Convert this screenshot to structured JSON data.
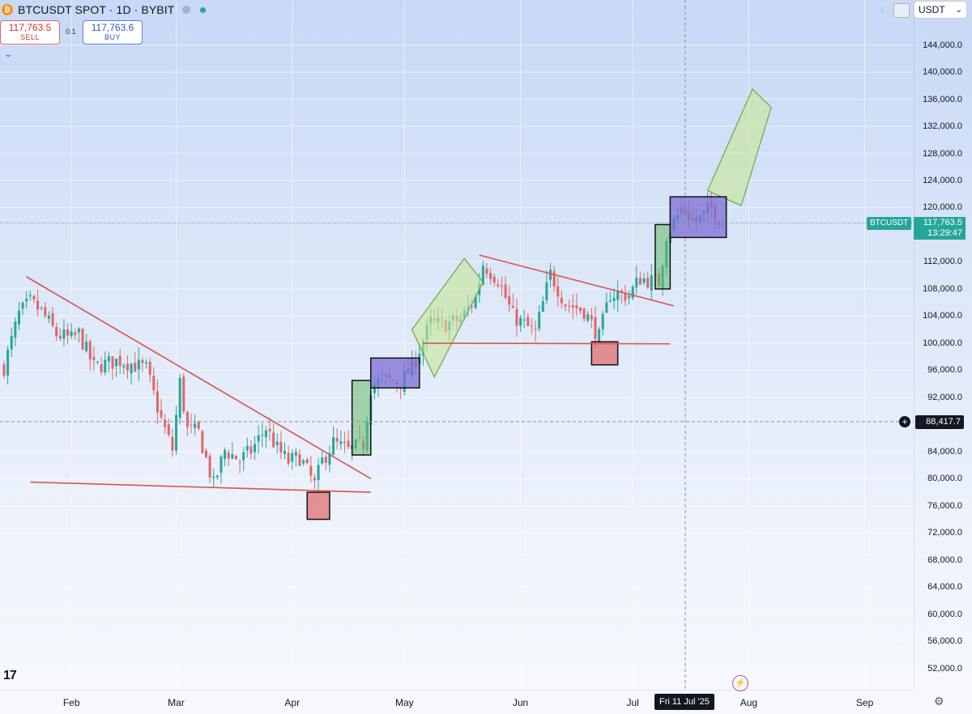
{
  "header": {
    "title": "BTCUSDT SPOT · 1D · BYBIT",
    "logo_icon": "bitcoin-icon",
    "sell_price": "117,763.5",
    "sell_label": "SELL",
    "buy_price": "117,763.6",
    "buy_label": "BUY",
    "spread": "0.1"
  },
  "toolbar": {
    "currency": "USDT"
  },
  "price_scale": {
    "labels": [
      "144,000.0",
      "140,000.0",
      "136,000.0",
      "132,000.0",
      "128,000.0",
      "124,000.0",
      "120,000.0",
      "112,000.0",
      "108,000.0",
      "104,000.0",
      "100,000.0",
      "96,000.0",
      "92,000.0",
      "84,000.0",
      "80,000.0",
      "76,000.0",
      "72,000.0",
      "68,000.0",
      "64,000.0",
      "60,000.0",
      "56,000.0",
      "52,000.0"
    ],
    "current_symbol": "BTCUSDT",
    "current_price": "117,763.5",
    "countdown": "13:29:47",
    "crosshair_price": "88,417.7"
  },
  "time_scale": {
    "labels": [
      "Feb",
      "Mar",
      "Apr",
      "May",
      "Jun",
      "Jul",
      "Aug",
      "Sep"
    ],
    "crosshair_date": "Fri 11 Jul '25"
  },
  "colors": {
    "up": "#26a69a",
    "down": "#e06666",
    "line": "#d9534f",
    "accent": "#2962ff"
  },
  "chart_data": {
    "type": "candlestick",
    "symbol": "BTCUSDT",
    "timeframe": "1D",
    "x_range": [
      "2025-01-14",
      "2025-09-10"
    ],
    "ylim": [
      50000,
      146000
    ],
    "y_scale": "linear",
    "grid": true,
    "closes": [
      {
        "date": "2025-01-14",
        "close": 96500
      },
      {
        "date": "2025-01-18",
        "close": 104300
      },
      {
        "date": "2025-01-21",
        "close": 106000
      },
      {
        "date": "2025-01-24",
        "close": 104700
      },
      {
        "date": "2025-01-28",
        "close": 101300
      },
      {
        "date": "2025-02-01",
        "close": 100600
      },
      {
        "date": "2025-02-03",
        "close": 101400
      },
      {
        "date": "2025-02-07",
        "close": 96500
      },
      {
        "date": "2025-02-14",
        "close": 97500
      },
      {
        "date": "2025-02-21",
        "close": 96200
      },
      {
        "date": "2025-02-25",
        "close": 88700
      },
      {
        "date": "2025-02-28",
        "close": 84300
      },
      {
        "date": "2025-03-02",
        "close": 94200
      },
      {
        "date": "2025-03-04",
        "close": 87200
      },
      {
        "date": "2025-03-07",
        "close": 86800
      },
      {
        "date": "2025-03-11",
        "close": 79000
      },
      {
        "date": "2025-03-14",
        "close": 84200
      },
      {
        "date": "2025-03-18",
        "close": 82700
      },
      {
        "date": "2025-03-21",
        "close": 84100
      },
      {
        "date": "2025-03-25",
        "close": 87500
      },
      {
        "date": "2025-03-28",
        "close": 84400
      },
      {
        "date": "2025-03-31",
        "close": 82500
      },
      {
        "date": "2025-04-03",
        "close": 83200
      },
      {
        "date": "2025-04-07",
        "close": 79100
      },
      {
        "date": "2025-04-09",
        "close": 82600
      },
      {
        "date": "2025-04-12",
        "close": 85300
      },
      {
        "date": "2025-04-16",
        "close": 84100
      },
      {
        "date": "2025-04-20",
        "close": 85100
      },
      {
        "date": "2025-04-22",
        "close": 93500
      },
      {
        "date": "2025-04-25",
        "close": 94700
      },
      {
        "date": "2025-04-30",
        "close": 94200
      },
      {
        "date": "2025-05-03",
        "close": 96500
      },
      {
        "date": "2025-05-08",
        "close": 103000
      },
      {
        "date": "2025-05-12",
        "close": 102800
      },
      {
        "date": "2025-05-16",
        "close": 103500
      },
      {
        "date": "2025-05-20",
        "close": 106800
      },
      {
        "date": "2025-05-22",
        "close": 111700
      },
      {
        "date": "2025-05-26",
        "close": 109400
      },
      {
        "date": "2025-05-30",
        "close": 104000
      },
      {
        "date": "2025-06-05",
        "close": 101500
      },
      {
        "date": "2025-06-09",
        "close": 110200
      },
      {
        "date": "2025-06-13",
        "close": 105900
      },
      {
        "date": "2025-06-18",
        "close": 104800
      },
      {
        "date": "2025-06-22",
        "close": 100900
      },
      {
        "date": "2025-06-25",
        "close": 107300
      },
      {
        "date": "2025-06-30",
        "close": 107100
      },
      {
        "date": "2025-07-03",
        "close": 109600
      },
      {
        "date": "2025-07-08",
        "close": 108900
      },
      {
        "date": "2025-07-10",
        "close": 116000
      },
      {
        "date": "2025-07-14",
        "close": 119800
      },
      {
        "date": "2025-07-18",
        "close": 117900
      },
      {
        "date": "2025-07-22",
        "close": 119900
      },
      {
        "date": "2025-07-25",
        "close": 117800
      }
    ],
    "annotations": {
      "trendlines": [
        {
          "from": {
            "date": "2025-01-20",
            "price": 109800
          },
          "to": {
            "date": "2025-04-22",
            "price": 80000
          }
        },
        {
          "from": {
            "date": "2025-01-21",
            "price": 79500
          },
          "to": {
            "date": "2025-04-22",
            "price": 78000
          }
        },
        {
          "from": {
            "date": "2025-05-06",
            "price": 100000
          },
          "to": {
            "date": "2025-07-11",
            "price": 99900
          }
        },
        {
          "from": {
            "date": "2025-05-21",
            "price": 113000
          },
          "to": {
            "date": "2025-07-12",
            "price": 105500
          }
        }
      ],
      "boxes": [
        {
          "kind": "red",
          "from": {
            "date": "2025-04-05",
            "price": 78000
          },
          "to": {
            "date": "2025-04-11",
            "price": 74000
          }
        },
        {
          "kind": "green",
          "from": {
            "date": "2025-04-17",
            "price": 94500
          },
          "to": {
            "date": "2025-04-22",
            "price": 83500
          }
        },
        {
          "kind": "blue",
          "from": {
            "date": "2025-04-22",
            "price": 97800
          },
          "to": {
            "date": "2025-05-05",
            "price": 93400
          }
        },
        {
          "kind": "red",
          "from": {
            "date": "2025-06-20",
            "price": 100200
          },
          "to": {
            "date": "2025-06-27",
            "price": 96800
          }
        },
        {
          "kind": "green",
          "from": {
            "date": "2025-07-07",
            "price": 117500
          },
          "to": {
            "date": "2025-07-11",
            "price": 108000
          }
        },
        {
          "kind": "blue",
          "from": {
            "date": "2025-07-11",
            "price": 121600
          },
          "to": {
            "date": "2025-07-26",
            "price": 115600
          }
        }
      ],
      "projections": [
        [
          {
            "date": "2025-05-03",
            "price": 102000
          },
          {
            "date": "2025-05-17",
            "price": 112500
          },
          {
            "date": "2025-05-22",
            "price": 109000
          },
          {
            "date": "2025-05-09",
            "price": 95000
          }
        ],
        [
          {
            "date": "2025-07-21",
            "price": 122500
          },
          {
            "date": "2025-08-02",
            "price": 137500
          },
          {
            "date": "2025-08-07",
            "price": 134800
          },
          {
            "date": "2025-07-30",
            "price": 120300
          }
        ]
      ]
    }
  }
}
